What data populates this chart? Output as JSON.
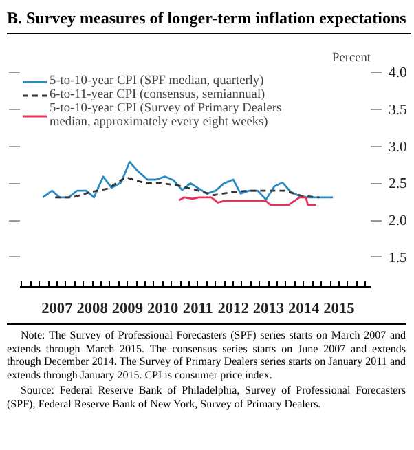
{
  "chart_data": {
    "type": "line",
    "title": "B.   Survey measures of longer-term inflation expectations",
    "ylabel": "Percent",
    "xlim": [
      2006.45,
      2016.4
    ],
    "ylim": [
      1.1,
      4.0
    ],
    "xticks": [
      {
        "value": 2007.5,
        "label": "2007"
      },
      {
        "value": 2008.5,
        "label": "2008"
      },
      {
        "value": 2009.5,
        "label": "2009"
      },
      {
        "value": 2010.5,
        "label": "2010"
      },
      {
        "value": 2011.5,
        "label": "2011"
      },
      {
        "value": 2012.5,
        "label": "2012"
      },
      {
        "value": 2013.5,
        "label": "2013"
      },
      {
        "value": 2014.5,
        "label": "2014"
      },
      {
        "value": 2015.5,
        "label": "2015"
      }
    ],
    "yticks": [
      {
        "value": 1.5,
        "label": "1.5"
      },
      {
        "value": 2.0,
        "label": "2.0"
      },
      {
        "value": 2.5,
        "label": "2.5"
      },
      {
        "value": 3.0,
        "label": "3.0"
      },
      {
        "value": 3.5,
        "label": "3.5"
      },
      {
        "value": 4.0,
        "label": "4.0"
      }
    ],
    "grid": false,
    "legend": "top left",
    "marker": "none",
    "series": [
      {
        "name": "5-to-10-year CPI (SPF median, quarterly)",
        "color": "#2a8bc4",
        "line_style": "solid",
        "x": [
          2007.1,
          2007.36,
          2007.57,
          2007.83,
          2008.07,
          2008.33,
          2008.55,
          2008.81,
          2009.05,
          2009.32,
          2009.56,
          2009.8,
          2010.07,
          2010.31,
          2010.57,
          2010.81,
          2011.05,
          2011.29,
          2011.52,
          2011.76,
          2012.0,
          2012.24,
          2012.5,
          2012.71,
          2012.95,
          2013.19,
          2013.43,
          2013.67,
          2013.9,
          2014.14,
          2014.38,
          2014.62,
          2014.86,
          2015.1,
          2015.33
        ],
        "values": [
          2.31,
          2.4,
          2.31,
          2.31,
          2.4,
          2.4,
          2.31,
          2.59,
          2.44,
          2.51,
          2.79,
          2.66,
          2.55,
          2.55,
          2.59,
          2.54,
          2.41,
          2.5,
          2.43,
          2.36,
          2.4,
          2.5,
          2.55,
          2.36,
          2.4,
          2.4,
          2.28,
          2.46,
          2.51,
          2.38,
          2.33,
          2.31,
          2.31,
          2.31,
          2.31
        ]
      },
      {
        "name": "6-to-11-year CPI (consensus, semiannual)",
        "color": "#333333",
        "line_style": "dashed",
        "x": [
          2007.45,
          2007.95,
          2008.45,
          2008.95,
          2009.45,
          2009.95,
          2010.45,
          2010.95,
          2011.45,
          2011.95,
          2012.45,
          2012.95,
          2013.45,
          2013.95,
          2014.45,
          2014.95
        ],
        "values": [
          2.31,
          2.31,
          2.38,
          2.43,
          2.58,
          2.51,
          2.5,
          2.47,
          2.41,
          2.34,
          2.38,
          2.4,
          2.4,
          2.4,
          2.33,
          2.31
        ]
      },
      {
        "name": "5-to-10-year CPI (Survey of Primary Dealers median, approximately every eight weeks)",
        "color": "#e8305a",
        "line_style": "solid",
        "x": [
          2010.96,
          2011.11,
          2011.35,
          2011.52,
          2011.88,
          2012.06,
          2012.24,
          2013.43,
          2013.55,
          2014.08,
          2014.38,
          2014.56,
          2014.62,
          2014.86
        ],
        "values": [
          2.27,
          2.31,
          2.29,
          2.31,
          2.31,
          2.24,
          2.26,
          2.26,
          2.21,
          2.21,
          2.31,
          2.31,
          2.21,
          2.21
        ]
      }
    ],
    "annotations": [
      "Note: The Survey of Professional Forecasters (SPF) series starts on March 2007 and extends through March 2015. The consensus series starts on June 2007 and extends through December 2014. The Survey of Primary Dealers series starts on January 2011 and extends through January 2015. CPI is consumer price index.",
      "Source: Federal Reserve Bank of Philadelphia, Survey of Professional Forecasters (SPF); Federal Reserve Bank of New York, Survey of Primary Dealers."
    ]
  }
}
